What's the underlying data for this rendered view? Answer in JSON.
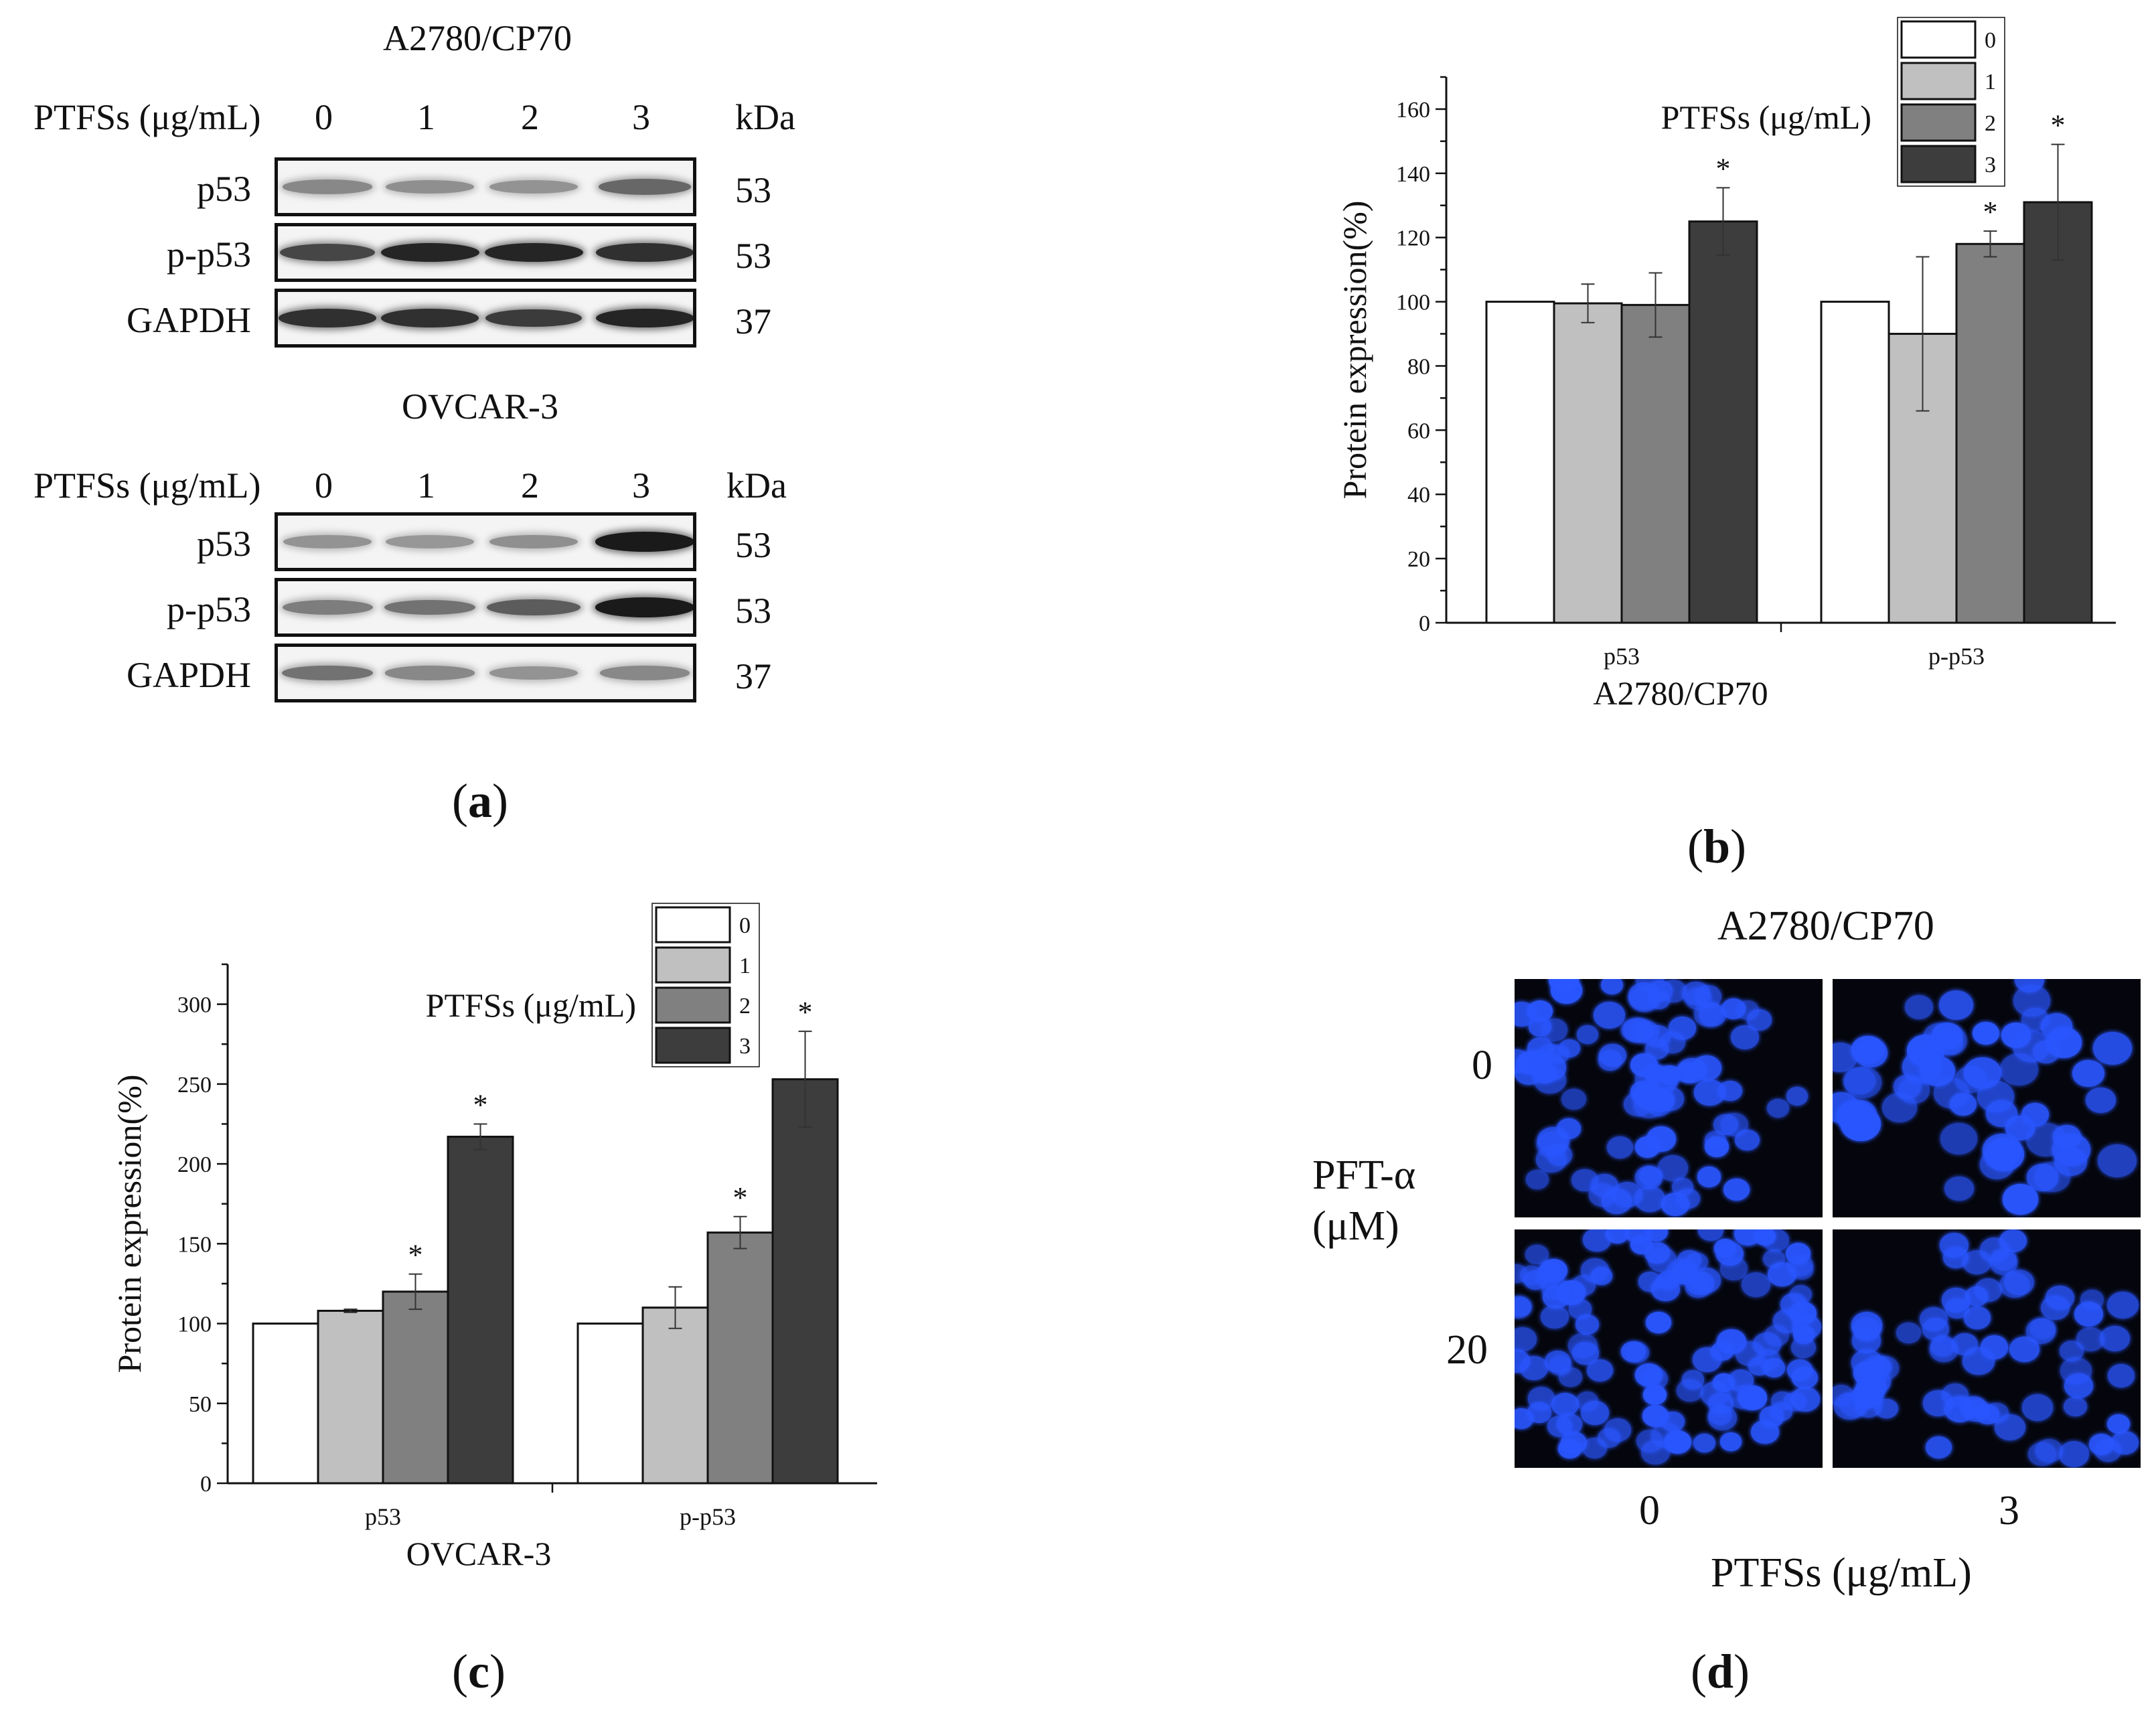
{
  "panel_labels": {
    "a": "a",
    "b": "b",
    "c": "c",
    "d": "d"
  },
  "western_blot": {
    "blocks": [
      {
        "cell_line": "A2780/CP70",
        "treatment_label": "PTFSs (μg/mL)",
        "doses": [
          "0",
          "1",
          "2",
          "3"
        ],
        "kda_header": "kDa",
        "rows": [
          {
            "protein": "p53",
            "kda": "53",
            "intensity": [
              0.45,
              0.42,
              0.4,
              0.6
            ]
          },
          {
            "protein": "p-p53",
            "kda": "53",
            "intensity": [
              0.75,
              0.9,
              0.9,
              0.85
            ]
          },
          {
            "protein": "GAPDH",
            "kda": "37",
            "intensity": [
              0.85,
              0.85,
              0.8,
              0.9
            ]
          }
        ]
      },
      {
        "cell_line": "OVCAR-3",
        "treatment_label": "PTFSs (μg/mL)",
        "doses": [
          "0",
          "1",
          "2",
          "3"
        ],
        "kda_header": "kDa",
        "rows": [
          {
            "protein": "p53",
            "kda": "53",
            "intensity": [
              0.4,
              0.38,
              0.42,
              0.95
            ]
          },
          {
            "protein": "p-p53",
            "kda": "53",
            "intensity": [
              0.5,
              0.55,
              0.65,
              0.95
            ]
          },
          {
            "protein": "GAPDH",
            "kda": "37",
            "intensity": [
              0.55,
              0.45,
              0.4,
              0.45
            ]
          }
        ]
      }
    ]
  },
  "chart_data": [
    {
      "panel": "b",
      "type": "bar",
      "categories": [
        "p53",
        "p-p53"
      ],
      "xlabel": "A2780/CP70",
      "ylabel": "Protein expression(%)",
      "ylim": [
        0,
        170
      ],
      "yticks": [
        0,
        20,
        40,
        60,
        80,
        100,
        120,
        140,
        160
      ],
      "legend_title": "PTFSs (μg/mL)",
      "legend_position": "top-right",
      "series": [
        {
          "name": "0",
          "color": "#ffffff",
          "values": [
            100,
            100
          ],
          "errors": [
            0,
            0
          ],
          "sig": [
            "",
            ""
          ]
        },
        {
          "name": "1",
          "color": "#c0c0c0",
          "values": [
            99.5,
            90
          ],
          "errors": [
            6,
            24
          ],
          "sig": [
            "",
            ""
          ]
        },
        {
          "name": "2",
          "color": "#808080",
          "values": [
            99,
            118
          ],
          "errors": [
            10,
            4
          ],
          "sig": [
            "",
            "*"
          ]
        },
        {
          "name": "3",
          "color": "#3d3d3d",
          "values": [
            125,
            131
          ],
          "errors": [
            10.5,
            18
          ],
          "sig": [
            "*",
            "*"
          ]
        }
      ]
    },
    {
      "panel": "c",
      "type": "bar",
      "categories": [
        "p53",
        "p-p53"
      ],
      "xlabel": "OVCAR-3",
      "ylabel": "Protein expression(%)",
      "ylim": [
        0,
        325
      ],
      "yticks": [
        0,
        50,
        100,
        150,
        200,
        250,
        300
      ],
      "legend_title": "PTFSs (μg/mL)",
      "legend_position": "top-right",
      "series": [
        {
          "name": "0",
          "color": "#ffffff",
          "values": [
            100,
            100
          ],
          "errors": [
            0,
            0
          ],
          "sig": [
            "",
            ""
          ]
        },
        {
          "name": "1",
          "color": "#c0c0c0",
          "values": [
            108,
            110
          ],
          "errors": [
            1,
            13
          ],
          "sig": [
            "",
            ""
          ]
        },
        {
          "name": "2",
          "color": "#808080",
          "values": [
            120,
            157
          ],
          "errors": [
            11,
            10
          ],
          "sig": [
            "*",
            "*"
          ]
        },
        {
          "name": "3",
          "color": "#3d3d3d",
          "values": [
            217,
            253
          ],
          "errors": [
            8,
            30
          ],
          "sig": [
            "*",
            "*"
          ]
        }
      ]
    }
  ],
  "fluorescence": {
    "title": "A2780/CP70",
    "y_label_line1": "PFT-α",
    "y_label_line2": "(μM)",
    "row_labels": [
      "0",
      "20"
    ],
    "col_labels": [
      "0",
      "3"
    ],
    "x_label": "PTFSs (μg/mL)",
    "stain_color": "#2a56ff"
  }
}
